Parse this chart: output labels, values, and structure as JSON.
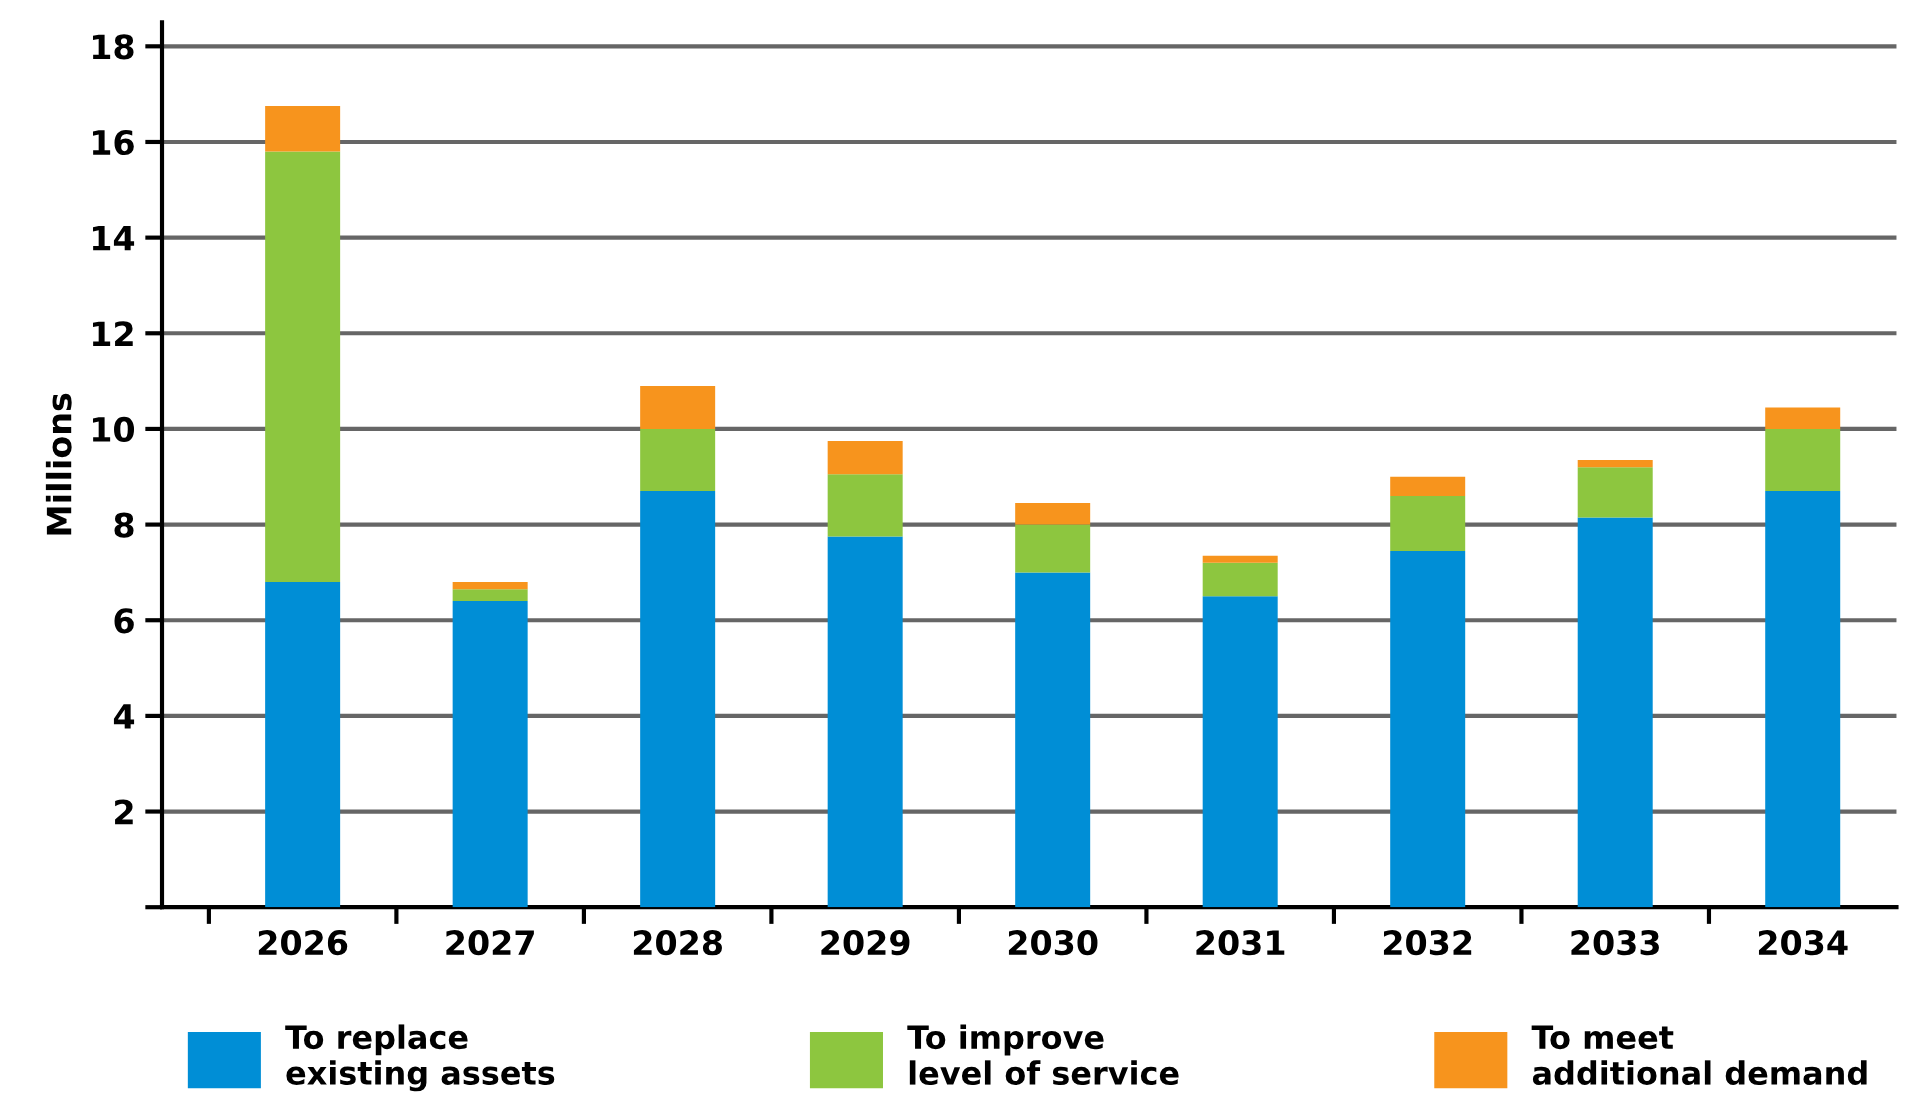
{
  "chart_data": {
    "type": "bar",
    "stacked": true,
    "ylabel": "Millions",
    "categories": [
      "2026",
      "2027",
      "2028",
      "2029",
      "2030",
      "2031",
      "2032",
      "2033",
      "2034"
    ],
    "series": [
      {
        "name": "To replace\nexisting assets",
        "color": "#008ed6",
        "values": [
          6.8,
          6.4,
          8.7,
          7.75,
          7.0,
          6.5,
          7.45,
          8.15,
          8.7
        ]
      },
      {
        "name": "To improve\nlevel of service",
        "color": "#8dc63f",
        "values": [
          9.0,
          0.25,
          1.3,
          1.3,
          1.0,
          0.7,
          1.15,
          1.05,
          1.3
        ]
      },
      {
        "name": "To meet\nadditional demand",
        "color": "#f7941d",
        "values": [
          0.95,
          0.15,
          0.9,
          0.7,
          0.45,
          0.15,
          0.4,
          0.15,
          0.45
        ]
      }
    ],
    "ylim": [
      0,
      18.5
    ],
    "yticks": [
      {
        "value": 0,
        "label": null
      },
      2,
      4,
      6,
      8,
      10,
      12,
      14,
      16,
      18
    ],
    "grid": "y",
    "legend": "bottom"
  }
}
